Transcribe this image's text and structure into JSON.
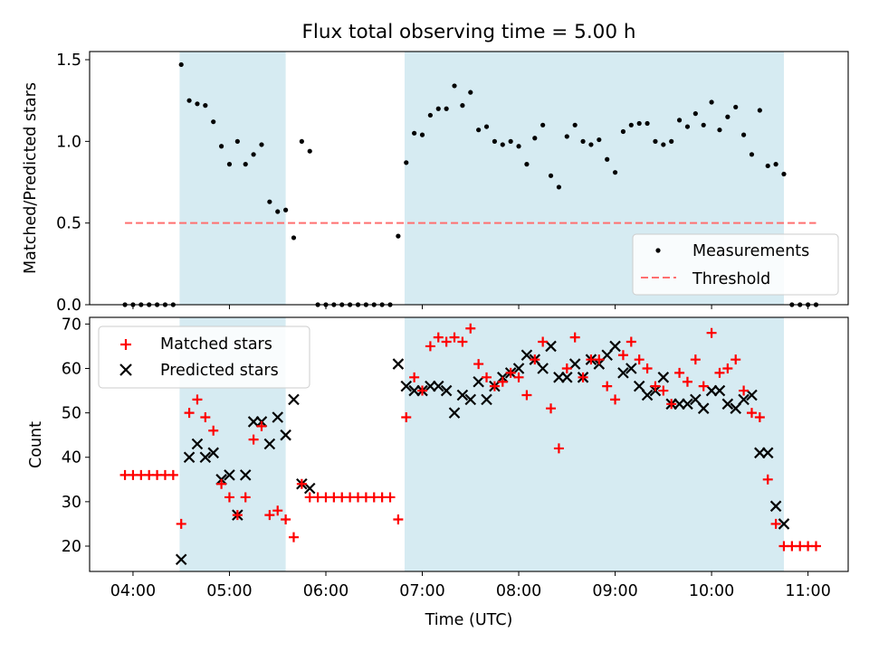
{
  "title": "Flux total observing time = 5.00 h",
  "colors": {
    "band": "#add8e6",
    "measurement": "#000000",
    "threshold": "#ff6f6f",
    "matched": "#ff0000",
    "predicted": "#000000"
  },
  "bands": [
    [
      "04:29",
      "05:35"
    ],
    [
      "06:49",
      "10:45"
    ]
  ],
  "chart_data": [
    {
      "type": "scatter",
      "panel": "top",
      "ylabel": "Matched/Predicted stars",
      "xlabel": "",
      "ylim": [
        0,
        1.55
      ],
      "yticks": [
        0.0,
        0.5,
        1.0,
        1.5
      ],
      "ytick_labels": [
        "0.0",
        "0.5",
        "1.0",
        "1.5"
      ],
      "grid": false,
      "legend_position": "lower-right",
      "legend": [
        "Measurements",
        "Threshold"
      ],
      "threshold": {
        "name": "Threshold",
        "value": 0.5,
        "x_range": [
          "03:55",
          "11:05"
        ]
      },
      "series": [
        {
          "name": "Measurements",
          "points": [
            [
              "03:55",
              0
            ],
            [
              "04:00",
              0
            ],
            [
              "04:05",
              0
            ],
            [
              "04:10",
              0
            ],
            [
              "04:15",
              0
            ],
            [
              "04:20",
              0
            ],
            [
              "04:25",
              0
            ],
            [
              "04:30",
              1.47
            ],
            [
              "04:35",
              1.25
            ],
            [
              "04:40",
              1.23
            ],
            [
              "04:45",
              1.22
            ],
            [
              "04:50",
              1.12
            ],
            [
              "04:55",
              0.97
            ],
            [
              "05:00",
              0.86
            ],
            [
              "05:05",
              1.0
            ],
            [
              "05:10",
              0.86
            ],
            [
              "05:15",
              0.92
            ],
            [
              "05:20",
              0.98
            ],
            [
              "05:25",
              0.63
            ],
            [
              "05:30",
              0.57
            ],
            [
              "05:35",
              0.58
            ],
            [
              "05:40",
              0.41
            ],
            [
              "05:45",
              1.0
            ],
            [
              "05:50",
              0.94
            ],
            [
              "05:55",
              0
            ],
            [
              "06:00",
              0
            ],
            [
              "06:05",
              0
            ],
            [
              "06:10",
              0
            ],
            [
              "06:15",
              0
            ],
            [
              "06:20",
              0
            ],
            [
              "06:25",
              0
            ],
            [
              "06:30",
              0
            ],
            [
              "06:35",
              0
            ],
            [
              "06:40",
              0
            ],
            [
              "06:45",
              0.42
            ],
            [
              "06:50",
              0.87
            ],
            [
              "06:55",
              1.05
            ],
            [
              "07:00",
              1.04
            ],
            [
              "07:05",
              1.16
            ],
            [
              "07:10",
              1.2
            ],
            [
              "07:15",
              1.2
            ],
            [
              "07:20",
              1.34
            ],
            [
              "07:25",
              1.22
            ],
            [
              "07:30",
              1.3
            ],
            [
              "07:35",
              1.07
            ],
            [
              "07:40",
              1.09
            ],
            [
              "07:45",
              1.0
            ],
            [
              "07:50",
              0.98
            ],
            [
              "07:55",
              1.0
            ],
            [
              "08:00",
              0.97
            ],
            [
              "08:05",
              0.86
            ],
            [
              "08:10",
              1.02
            ],
            [
              "08:15",
              1.1
            ],
            [
              "08:20",
              0.79
            ],
            [
              "08:25",
              0.72
            ],
            [
              "08:30",
              1.03
            ],
            [
              "08:35",
              1.1
            ],
            [
              "08:40",
              1.0
            ],
            [
              "08:45",
              0.98
            ],
            [
              "08:50",
              1.01
            ],
            [
              "08:55",
              0.89
            ],
            [
              "09:00",
              0.81
            ],
            [
              "09:05",
              1.06
            ],
            [
              "09:10",
              1.1
            ],
            [
              "09:15",
              1.11
            ],
            [
              "09:20",
              1.11
            ],
            [
              "09:25",
              1.0
            ],
            [
              "09:30",
              0.98
            ],
            [
              "09:35",
              1.0
            ],
            [
              "09:40",
              1.13
            ],
            [
              "09:45",
              1.09
            ],
            [
              "09:50",
              1.17
            ],
            [
              "09:55",
              1.1
            ],
            [
              "10:00",
              1.24
            ],
            [
              "10:05",
              1.07
            ],
            [
              "10:10",
              1.15
            ],
            [
              "10:15",
              1.21
            ],
            [
              "10:20",
              1.04
            ],
            [
              "10:25",
              0.92
            ],
            [
              "10:30",
              1.19
            ],
            [
              "10:35",
              0.85
            ],
            [
              "10:40",
              0.86
            ],
            [
              "10:45",
              0.8
            ],
            [
              "10:50",
              0
            ],
            [
              "10:55",
              0
            ],
            [
              "11:00",
              0
            ],
            [
              "11:05",
              0
            ]
          ]
        }
      ]
    },
    {
      "type": "scatter",
      "panel": "bottom",
      "xlabel": "Time (UTC)",
      "ylabel": "Count",
      "xlim": [
        "03:33",
        "11:25"
      ],
      "xticks": [
        "04:00",
        "05:00",
        "06:00",
        "07:00",
        "08:00",
        "09:00",
        "10:00",
        "11:00"
      ],
      "ylim": [
        14.3,
        71.5
      ],
      "yticks": [
        20,
        30,
        40,
        50,
        60,
        70
      ],
      "ytick_labels": [
        "20",
        "30",
        "40",
        "50",
        "60",
        "70"
      ],
      "grid": false,
      "legend_position": "upper-left",
      "legend": [
        "Matched stars",
        "Predicted stars"
      ],
      "series": [
        {
          "name": "Matched stars",
          "marker": "+",
          "points": [
            [
              "03:55",
              36
            ],
            [
              "04:00",
              36
            ],
            [
              "04:05",
              36
            ],
            [
              "04:10",
              36
            ],
            [
              "04:15",
              36
            ],
            [
              "04:20",
              36
            ],
            [
              "04:25",
              36
            ],
            [
              "04:30",
              25
            ],
            [
              "04:35",
              50
            ],
            [
              "04:40",
              53
            ],
            [
              "04:45",
              49
            ],
            [
              "04:50",
              46
            ],
            [
              "04:55",
              34
            ],
            [
              "05:00",
              31
            ],
            [
              "05:05",
              27
            ],
            [
              "05:10",
              31
            ],
            [
              "05:15",
              44
            ],
            [
              "05:20",
              47
            ],
            [
              "05:25",
              27
            ],
            [
              "05:30",
              28
            ],
            [
              "05:35",
              26
            ],
            [
              "05:40",
              22
            ],
            [
              "05:45",
              34
            ],
            [
              "05:50",
              31
            ],
            [
              "05:55",
              31
            ],
            [
              "06:00",
              31
            ],
            [
              "06:05",
              31
            ],
            [
              "06:10",
              31
            ],
            [
              "06:15",
              31
            ],
            [
              "06:20",
              31
            ],
            [
              "06:25",
              31
            ],
            [
              "06:30",
              31
            ],
            [
              "06:35",
              31
            ],
            [
              "06:40",
              31
            ],
            [
              "06:45",
              26
            ],
            [
              "06:50",
              49
            ],
            [
              "06:55",
              58
            ],
            [
              "07:00",
              55
            ],
            [
              "07:05",
              65
            ],
            [
              "07:10",
              67
            ],
            [
              "07:15",
              66
            ],
            [
              "07:20",
              67
            ],
            [
              "07:25",
              66
            ],
            [
              "07:30",
              69
            ],
            [
              "07:35",
              61
            ],
            [
              "07:40",
              58
            ],
            [
              "07:45",
              56
            ],
            [
              "07:50",
              57
            ],
            [
              "07:55",
              59
            ],
            [
              "08:00",
              58
            ],
            [
              "08:05",
              54
            ],
            [
              "08:10",
              62
            ],
            [
              "08:15",
              66
            ],
            [
              "08:20",
              51
            ],
            [
              "08:25",
              42
            ],
            [
              "08:30",
              60
            ],
            [
              "08:35",
              67
            ],
            [
              "08:40",
              58
            ],
            [
              "08:45",
              62
            ],
            [
              "08:50",
              62
            ],
            [
              "08:55",
              56
            ],
            [
              "09:00",
              53
            ],
            [
              "09:05",
              63
            ],
            [
              "09:10",
              66
            ],
            [
              "09:15",
              62
            ],
            [
              "09:20",
              60
            ],
            [
              "09:25",
              56
            ],
            [
              "09:30",
              55
            ],
            [
              "09:35",
              52
            ],
            [
              "09:40",
              59
            ],
            [
              "09:45",
              57
            ],
            [
              "09:50",
              62
            ],
            [
              "09:55",
              56
            ],
            [
              "10:00",
              68
            ],
            [
              "10:05",
              59
            ],
            [
              "10:10",
              60
            ],
            [
              "10:15",
              62
            ],
            [
              "10:20",
              55
            ],
            [
              "10:25",
              50
            ],
            [
              "10:30",
              49
            ],
            [
              "10:35",
              35
            ],
            [
              "10:40",
              25
            ],
            [
              "10:45",
              20
            ],
            [
              "10:50",
              20
            ],
            [
              "10:55",
              20
            ],
            [
              "11:00",
              20
            ],
            [
              "11:05",
              20
            ]
          ]
        },
        {
          "name": "Predicted stars",
          "marker": "x",
          "points": [
            [
              "04:30",
              17
            ],
            [
              "04:35",
              40
            ],
            [
              "04:40",
              43
            ],
            [
              "04:45",
              40
            ],
            [
              "04:50",
              41
            ],
            [
              "04:55",
              35
            ],
            [
              "05:00",
              36
            ],
            [
              "05:05",
              27
            ],
            [
              "05:10",
              36
            ],
            [
              "05:15",
              48
            ],
            [
              "05:20",
              48
            ],
            [
              "05:25",
              43
            ],
            [
              "05:30",
              49
            ],
            [
              "05:35",
              45
            ],
            [
              "05:40",
              53
            ],
            [
              "05:45",
              34
            ],
            [
              "05:50",
              33
            ],
            [
              "06:45",
              61
            ],
            [
              "06:50",
              56
            ],
            [
              "06:55",
              55
            ],
            [
              "07:00",
              55
            ],
            [
              "07:05",
              56
            ],
            [
              "07:10",
              56
            ],
            [
              "07:15",
              55
            ],
            [
              "07:20",
              50
            ],
            [
              "07:25",
              54
            ],
            [
              "07:30",
              53
            ],
            [
              "07:35",
              57
            ],
            [
              "07:40",
              53
            ],
            [
              "07:45",
              56
            ],
            [
              "07:50",
              58
            ],
            [
              "07:55",
              59
            ],
            [
              "08:00",
              60
            ],
            [
              "08:05",
              63
            ],
            [
              "08:10",
              62
            ],
            [
              "08:15",
              60
            ],
            [
              "08:20",
              65
            ],
            [
              "08:25",
              58
            ],
            [
              "08:30",
              58
            ],
            [
              "08:35",
              61
            ],
            [
              "08:40",
              58
            ],
            [
              "08:45",
              62
            ],
            [
              "08:50",
              61
            ],
            [
              "08:55",
              63
            ],
            [
              "09:00",
              65
            ],
            [
              "09:05",
              59
            ],
            [
              "09:10",
              60
            ],
            [
              "09:15",
              56
            ],
            [
              "09:20",
              54
            ],
            [
              "09:25",
              55
            ],
            [
              "09:30",
              58
            ],
            [
              "09:35",
              52
            ],
            [
              "09:40",
              52
            ],
            [
              "09:45",
              52
            ],
            [
              "09:50",
              53
            ],
            [
              "09:55",
              51
            ],
            [
              "10:00",
              55
            ],
            [
              "10:05",
              55
            ],
            [
              "10:10",
              52
            ],
            [
              "10:15",
              51
            ],
            [
              "10:20",
              53
            ],
            [
              "10:25",
              54
            ],
            [
              "10:30",
              41
            ],
            [
              "10:35",
              41
            ],
            [
              "10:40",
              29
            ],
            [
              "10:45",
              25
            ]
          ]
        }
      ]
    }
  ]
}
